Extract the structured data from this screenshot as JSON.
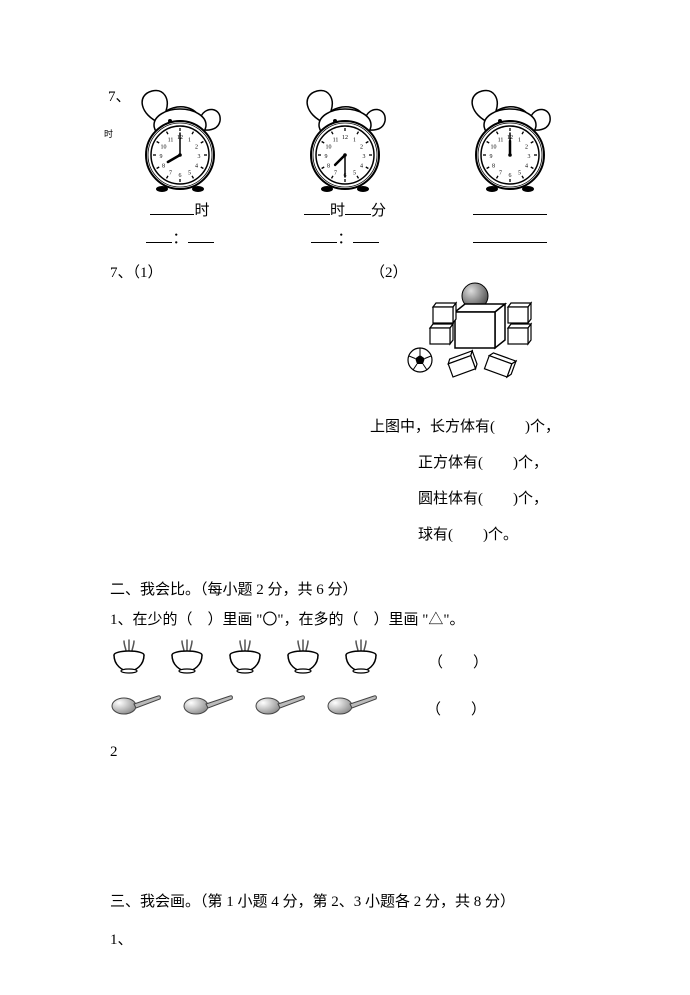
{
  "q7": {
    "label_main": "7、",
    "label_small": "时",
    "clocks": [
      {
        "hour": 8,
        "minute": 0,
        "line1_parts": [
          "",
          "时"
        ],
        "line1_blanks_w": [
          44
        ],
        "line2_parts": [
          "",
          "：",
          ""
        ],
        "line2_blanks_w": [
          26,
          26
        ]
      },
      {
        "hour": 7,
        "minute": 30,
        "line1_parts": [
          "",
          "时",
          "",
          "分"
        ],
        "line1_blanks_w": [
          26,
          26
        ],
        "line2_parts": [
          "",
          "：",
          ""
        ],
        "line2_blanks_w": [
          26,
          26
        ]
      },
      {
        "hour": 12,
        "minute": 0,
        "line1_parts": [
          ""
        ],
        "line1_blanks_w": [
          74
        ],
        "line2_parts": [
          ""
        ],
        "line2_blanks_w": [
          74
        ]
      }
    ]
  },
  "q7b": {
    "label": "7、（1）",
    "label_right": "（2）",
    "shapes_title": "上图中，长方体有(　　)个，",
    "lines": [
      "正方体有(　　)个，",
      "圆柱体有(　　)个，",
      "球有(　　)个。"
    ],
    "robot": {
      "cuboids": 6,
      "cube": 1,
      "cylinders": 0,
      "spheres": 2
    }
  },
  "section2": {
    "heading": "二、我会比。（每小题 2 分，共 6 分）",
    "q1": "1、在少的（ ）里画 \"〇\"，在多的（ ）里画 \"△\"。",
    "bowl_count": 5,
    "spoon_count": 4,
    "paren": "（　　）",
    "q2_label": "2"
  },
  "section3": {
    "heading": "三、我会画。（第 1 小题 4 分，第 2、3 小题各 2 分，共 8 分）",
    "q1_label": "1、"
  },
  "colors": {
    "stroke": "#000000",
    "fill_light": "#ffffff",
    "fill_gray": "#9a9a9a",
    "fill_mid": "#cccccc"
  }
}
